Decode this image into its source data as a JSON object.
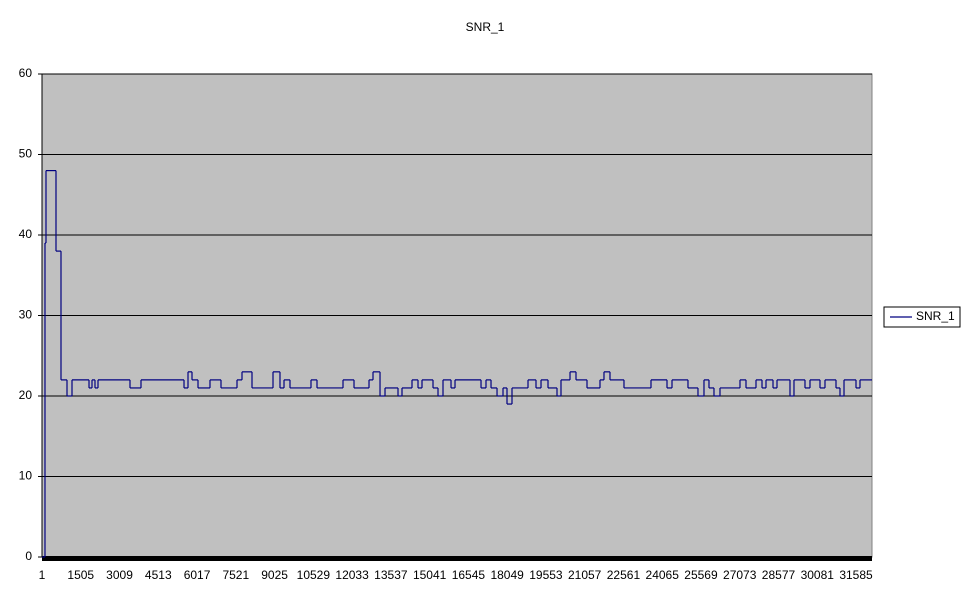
{
  "chart_data": {
    "type": "line",
    "step": "post",
    "title": "SNR_1",
    "x": [
      1,
      117,
      156,
      544,
      738,
      971,
      1165,
      1825,
      1941,
      2057,
      2174,
      3415,
      3842,
      5511,
      5666,
      5821,
      6054,
      6519,
      6946,
      7567,
      7761,
      8149,
      8964,
      9235,
      9391,
      9623,
      10438,
      10671,
      11680,
      12107,
      12689,
      12844,
      13116,
      13310,
      13814,
      13969,
      14357,
      14590,
      14745,
      15172,
      15366,
      15560,
      15871,
      16026,
      17035,
      17228,
      17423,
      17656,
      17888,
      18043,
      18237,
      18858,
      19168,
      19363,
      19634,
      19983,
      20138,
      20488,
      20720,
      21147,
      21651,
      21806,
      22039,
      22582,
      23630,
      24251,
      24445,
      25065,
      25453,
      25686,
      25880,
      26074,
      26307,
      27083,
      27316,
      27704,
      27937,
      28092,
      28364,
      28519,
      29023,
      29178,
      29605,
      29799,
      30187,
      30381,
      30808,
      30963,
      31119,
      31584,
      31739,
      32205
    ],
    "series": [
      {
        "name": "SNR_1",
        "color": "#000080",
        "values": [
          0,
          39,
          48,
          38,
          22,
          20,
          22,
          21,
          22,
          21,
          22,
          21,
          22,
          21,
          23,
          22,
          21,
          22,
          21,
          22,
          23,
          21,
          23,
          21,
          22,
          21,
          22,
          21,
          22,
          21,
          22,
          23,
          20,
          21,
          20,
          21,
          22,
          21,
          22,
          21,
          20,
          22,
          21,
          22,
          21,
          22,
          21,
          20,
          21,
          19,
          21,
          22,
          21,
          22,
          21,
          20,
          22,
          23,
          22,
          21,
          22,
          23,
          22,
          21,
          22,
          21,
          22,
          21,
          20,
          22,
          21,
          20,
          21,
          22,
          21,
          22,
          21,
          22,
          21,
          22,
          20,
          22,
          21,
          22,
          21,
          22,
          21,
          20,
          22,
          21,
          22,
          22
        ]
      }
    ],
    "xlim": [
      1,
      32205
    ],
    "xticks": [
      1,
      1505,
      3009,
      4513,
      6017,
      7521,
      9025,
      10529,
      12033,
      13537,
      15041,
      16545,
      18049,
      19553,
      21057,
      22561,
      24065,
      25569,
      27073,
      28577,
      30081,
      31585
    ],
    "ylim": [
      0,
      60
    ],
    "yticks": [
      0,
      10,
      20,
      30,
      40,
      50,
      60
    ],
    "grid": true,
    "legend": "right"
  }
}
